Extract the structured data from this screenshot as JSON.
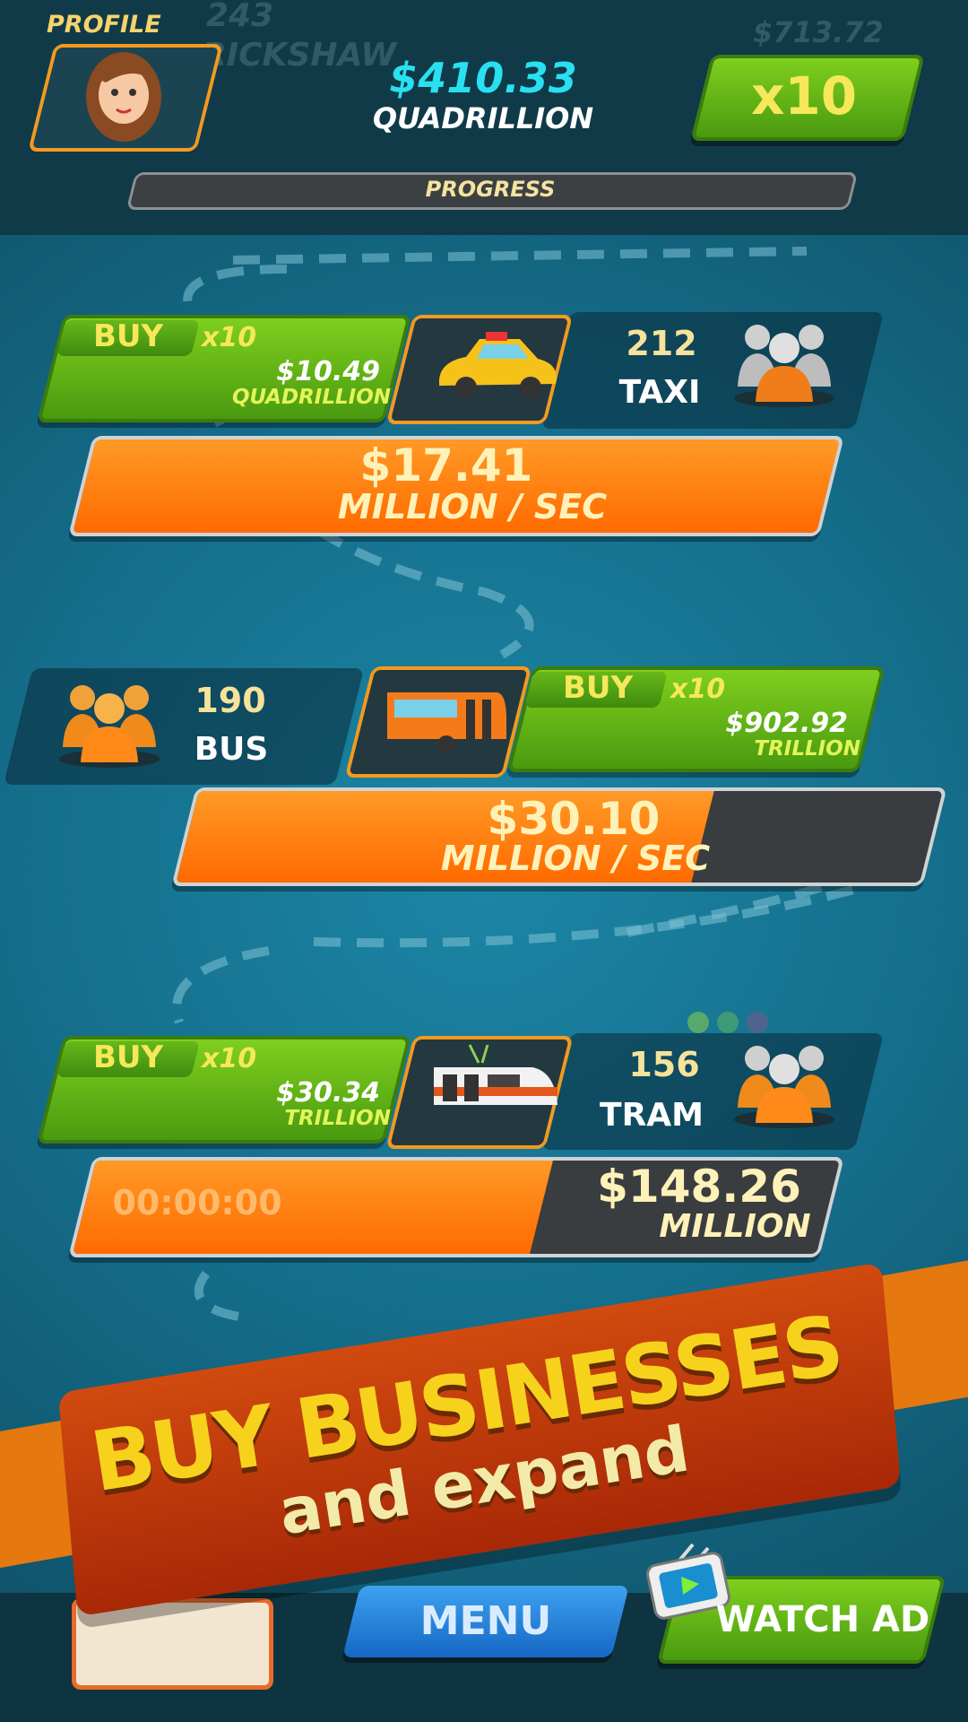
{
  "header": {
    "profile_label": "PROFILE",
    "balance": "$410.33",
    "balance_unit": "QUADRILLION",
    "multiplier": "x10",
    "progress_label": "PROGRESS"
  },
  "background_text": [
    "243",
    "RICKSHAW",
    "$713.72"
  ],
  "businesses": [
    {
      "name": "TAXI",
      "owned": "212",
      "buy_label": "BUY",
      "buy_multiplier": "x10",
      "buy_price": "$10.49",
      "buy_price_unit": "QUADRILLION",
      "income": "$17.41",
      "income_unit": "MILLION / SEC"
    },
    {
      "name": "BUS",
      "owned": "190",
      "buy_label": "BUY",
      "buy_multiplier": "x10",
      "buy_price": "$902.92",
      "buy_price_unit": "TRILLION",
      "income": "$30.10",
      "income_unit": "MILLION / SEC"
    },
    {
      "name": "TRAM",
      "owned": "156",
      "buy_label": "BUY",
      "buy_multiplier": "x10",
      "buy_price": "$30.34",
      "buy_price_unit": "TRILLION",
      "timer": "00:00:00",
      "income": "$148.26",
      "income_unit": "MILLION"
    }
  ],
  "banner": {
    "title": "BUY BUSINESSES",
    "subtitle": "and expand"
  },
  "footer": {
    "menu": "MENU",
    "watch_ad": "WATCH AD"
  }
}
